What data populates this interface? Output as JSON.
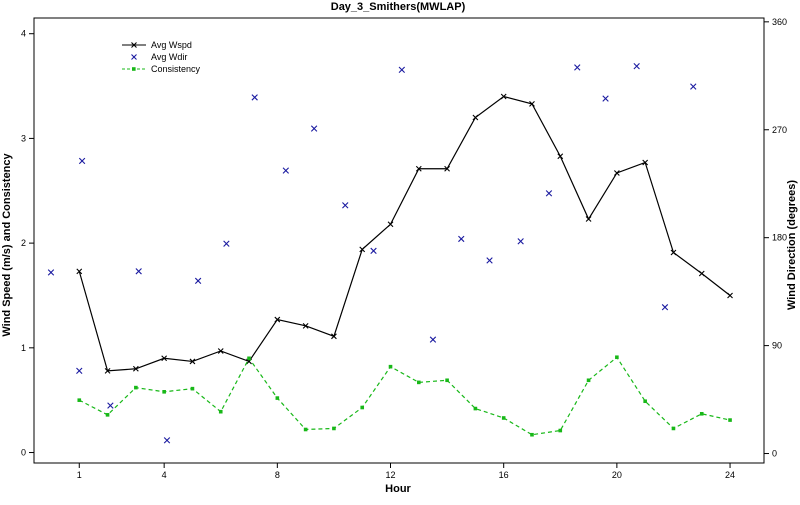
{
  "chart_data": {
    "type": "line",
    "title": "Day_3_Smithers(MWLAP)",
    "xlabel": "Hour",
    "ylabel_left": "Wind Speed (m/s) and Consistency",
    "ylabel_right": "Wind Direction (degrees)",
    "xlim": [
      -0.6,
      25.2
    ],
    "ylim_left": [
      -0.1,
      4.15
    ],
    "ylim_right": [
      -7.9,
      363.2
    ],
    "x_ticks": [
      1,
      4,
      8,
      12,
      16,
      20,
      24
    ],
    "y_left_ticks": [
      0,
      1,
      2,
      3,
      4
    ],
    "y_right_ticks": [
      0,
      90,
      180,
      270,
      360
    ],
    "legend_position": "top-left",
    "series": [
      {
        "name": "Avg Wspd",
        "axis": "left",
        "style": "line-x",
        "color": "#000000",
        "x": [
          1,
          2,
          3,
          4,
          5,
          6,
          7,
          8,
          9,
          10,
          11,
          12,
          13,
          14,
          15,
          16,
          17,
          18,
          19,
          20,
          21,
          22,
          23,
          24
        ],
        "values": [
          1.73,
          0.78,
          0.8,
          0.9,
          0.87,
          0.97,
          0.87,
          1.27,
          1.21,
          1.11,
          1.94,
          2.18,
          2.71,
          2.71,
          3.2,
          3.4,
          3.33,
          2.83,
          2.23,
          2.67,
          2.77,
          1.91,
          1.71,
          1.5
        ]
      },
      {
        "name": "Avg Wdir",
        "axis": "right",
        "style": "markers-x",
        "color": "#1a1aa0",
        "x": [
          0,
          1,
          1.1,
          2.1,
          3.1,
          4.1,
          5.2,
          6.2,
          7.2,
          8.3,
          9.3,
          10.4,
          11.4,
          12.4,
          13.5,
          14.5,
          15.5,
          16.6,
          17.6,
          18.6,
          19.6,
          20.7,
          21.7,
          22.7
        ],
        "values": [
          151,
          69,
          244,
          40,
          152,
          11,
          144,
          175,
          297,
          236,
          271,
          207,
          169,
          320,
          95,
          179,
          161,
          177,
          217,
          322,
          296,
          323,
          122,
          306
        ]
      },
      {
        "name": "Consistency",
        "axis": "left",
        "style": "dashed-dots",
        "color": "#18b818",
        "x": [
          1,
          2,
          3,
          4,
          5,
          6,
          7,
          8,
          9,
          10,
          11,
          12,
          13,
          14,
          15,
          16,
          17,
          18,
          19,
          20,
          21,
          22,
          23,
          24
        ],
        "values": [
          0.5,
          0.36,
          0.62,
          0.58,
          0.61,
          0.39,
          0.9,
          0.52,
          0.22,
          0.23,
          0.43,
          0.82,
          0.67,
          0.69,
          0.42,
          0.33,
          0.17,
          0.21,
          0.69,
          0.91,
          0.49,
          0.23,
          0.37,
          0.31
        ]
      }
    ]
  }
}
